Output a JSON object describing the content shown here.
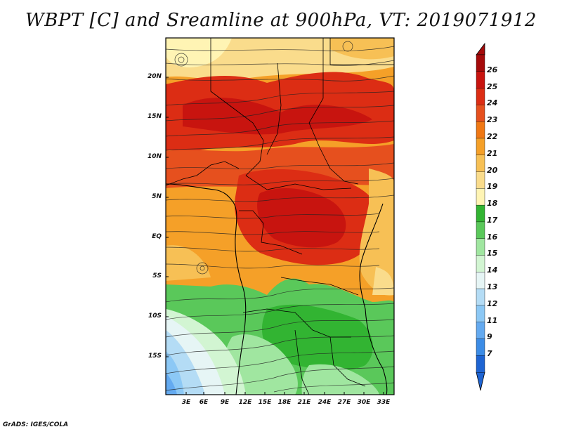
{
  "title": "WBPT [C] and Sreamline at 900hPa, VT: 2019071912",
  "credit": "GrADS: IGES/COLA",
  "map": {
    "lat_labels": [
      "20N",
      "15N",
      "10N",
      "5N",
      "EQ",
      "5S",
      "10S",
      "15S"
    ],
    "lon_labels": [
      "3E",
      "6E",
      "9E",
      "12E",
      "15E",
      "18E",
      "21E",
      "24E",
      "27E",
      "30E",
      "33E"
    ]
  },
  "colorbar": {
    "labels": [
      "26",
      "25",
      "24",
      "23",
      "22",
      "21",
      "20",
      "19",
      "18",
      "17",
      "16",
      "15",
      "14",
      "13",
      "12",
      "11",
      "9",
      "7"
    ],
    "colors": [
      "#a50a0a",
      "#c8140f",
      "#dc2d14",
      "#e6501e",
      "#f07814",
      "#f5a028",
      "#f7c055",
      "#fadc8c",
      "#fff4b4",
      "#32b432",
      "#5ac85a",
      "#a0e6a0",
      "#d2f5d2",
      "#e6f5f5",
      "#b4dcf5",
      "#8cc8f5",
      "#64aaf0",
      "#3c8ce6",
      "#1e64d2"
    ]
  }
}
